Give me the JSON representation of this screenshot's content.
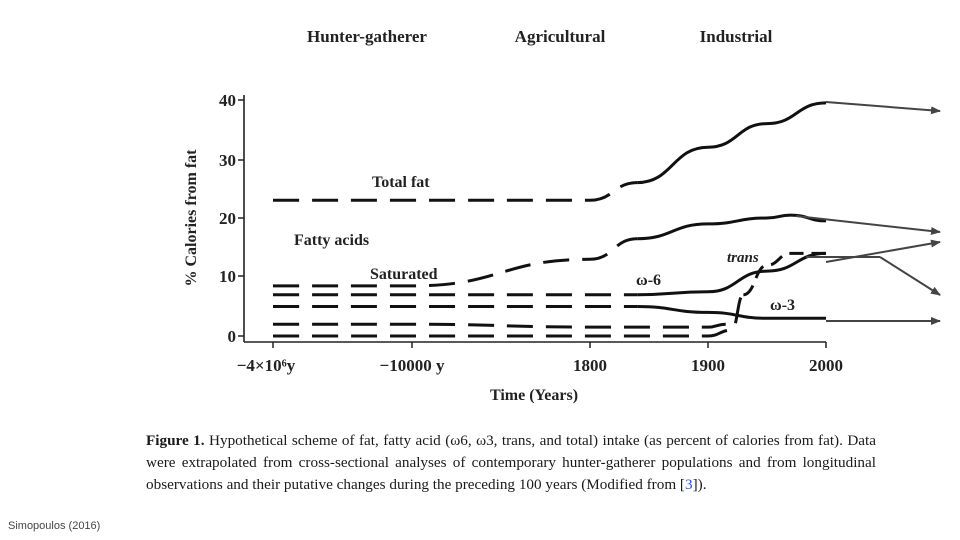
{
  "chart_data": {
    "type": "line",
    "eras": [
      "Hunter-gatherer",
      "Agricultural",
      "Industrial"
    ],
    "ylabel": "% Calories from fat",
    "xlabel": "Time (Years)",
    "yticks": [
      "0",
      "10",
      "20",
      "30",
      "40"
    ],
    "ylim": [
      0,
      40
    ],
    "x_categories": [
      "−4×10⁶y",
      "−10000 y",
      "1800",
      "1900",
      "2000"
    ],
    "x_positions": [
      -4000000,
      -10000,
      1800,
      1900,
      2000
    ],
    "labels": {
      "total_fat": "Total fat",
      "fatty_acids": "Fatty acids",
      "saturated": "Saturated",
      "omega6": "ω-6",
      "trans": "trans",
      "omega3": "ω-3"
    },
    "series": [
      {
        "name": "Total fat",
        "points": [
          [
            -4000000,
            23
          ],
          [
            -10000,
            23
          ],
          [
            1800,
            23
          ],
          [
            1840,
            26
          ],
          [
            1900,
            32
          ],
          [
            1950,
            36
          ],
          [
            2000,
            39.5
          ]
        ]
      },
      {
        "name": "Saturated",
        "points": [
          [
            -4000000,
            8.5
          ],
          [
            -10000,
            8.5
          ],
          [
            1800,
            13
          ],
          [
            1840,
            16.5
          ],
          [
            1900,
            19
          ],
          [
            1950,
            20
          ],
          [
            1970,
            20.5
          ],
          [
            2000,
            19.5
          ]
        ]
      },
      {
        "name": "ω-6",
        "points": [
          [
            -4000000,
            7
          ],
          [
            -10000,
            7
          ],
          [
            1800,
            7
          ],
          [
            1840,
            7
          ],
          [
            1900,
            7.5
          ],
          [
            1950,
            11
          ],
          [
            2000,
            14
          ]
        ]
      },
      {
        "name": "trans",
        "points": [
          [
            -4000000,
            0
          ],
          [
            1900,
            0
          ],
          [
            1920,
            1
          ],
          [
            1930,
            7
          ],
          [
            1950,
            12
          ],
          [
            1970,
            14
          ],
          [
            2000,
            14
          ]
        ]
      },
      {
        "name": "ω-3",
        "points": [
          [
            -4000000,
            5
          ],
          [
            -10000,
            5
          ],
          [
            1800,
            5
          ],
          [
            1840,
            5
          ],
          [
            1900,
            4
          ],
          [
            1950,
            3
          ],
          [
            2000,
            3
          ]
        ]
      },
      {
        "name": "",
        "points": [
          [
            -4000000,
            2
          ],
          [
            -10000,
            2
          ],
          [
            1800,
            1.5
          ],
          [
            1900,
            1.5
          ],
          [
            1915,
            2
          ]
        ]
      }
    ]
  },
  "caption": {
    "figure_label": "Figure 1.",
    "text_before_ref": " Hypothetical scheme of fat, fatty acid (ω6, ω3, trans, and total) intake (as percent of calories from fat). Data were extrapolated from cross-sectional analyses of contemporary hunter-gatherer populations and from longitudinal observations and their putative changes during the preceding 100 years (Modified from [",
    "ref": "3",
    "text_after_ref": "])."
  },
  "credit": "Simopoulos (2016)"
}
